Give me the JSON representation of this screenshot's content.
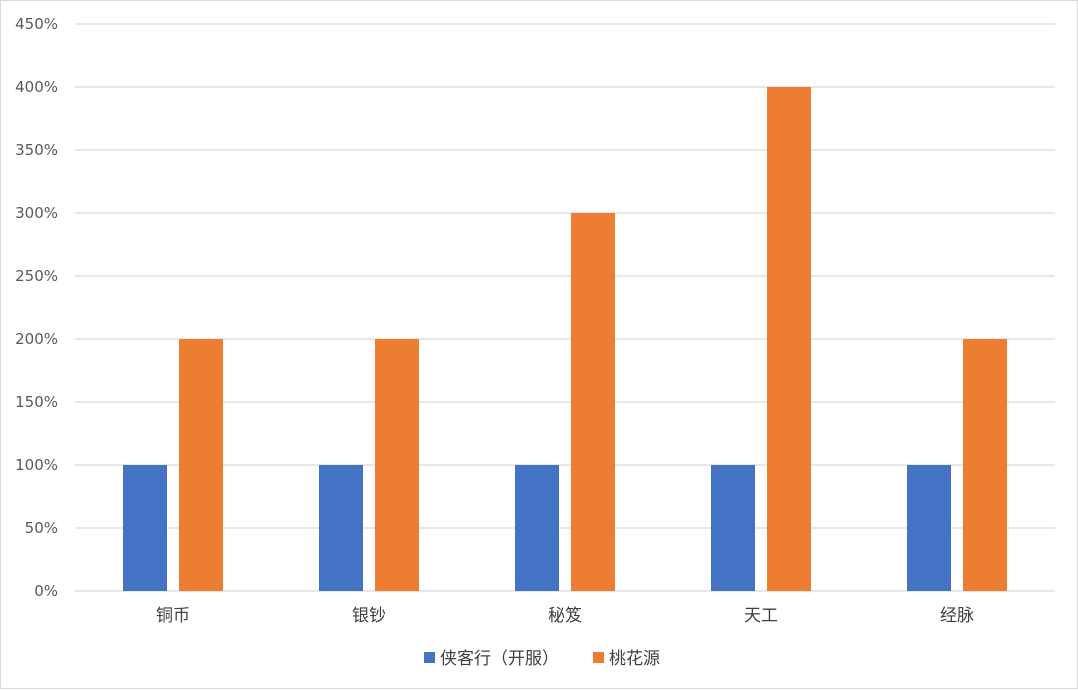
{
  "chart_data": {
    "type": "bar",
    "categories": [
      "铜币",
      "银钞",
      "秘笈",
      "天工",
      "经脉"
    ],
    "series": [
      {
        "name": "侠客行（开服）",
        "values": [
          100,
          100,
          100,
          100,
          100
        ],
        "color": "#4472c4"
      },
      {
        "name": "桃花源",
        "values": [
          200,
          200,
          300,
          400,
          200
        ],
        "color": "#ed7d31"
      }
    ],
    "y_ticks": [
      "0%",
      "50%",
      "100%",
      "150%",
      "200%",
      "250%",
      "300%",
      "350%",
      "400%",
      "450%"
    ],
    "ylim": [
      0,
      450
    ],
    "grid": true,
    "legend_position": "bottom",
    "gridline_color": "#d9d9d9"
  }
}
